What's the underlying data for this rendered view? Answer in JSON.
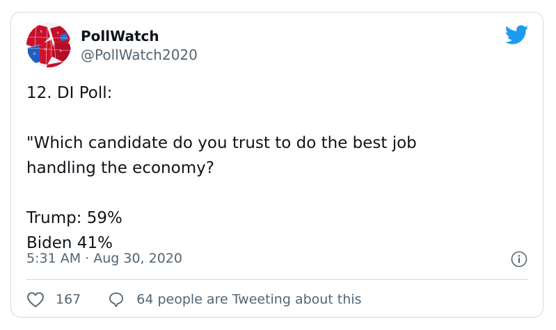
{
  "author": {
    "display_name": "PollWatch",
    "handle": "@PollWatch2020",
    "avatar_icon": "us-electoral-map-avatar"
  },
  "tweet": {
    "text": "12. DI Poll:\n\n\"Which candidate do you trust to do the best job\nhandling the economy?\n\nTrump: 59%\nBiden 41%"
  },
  "meta": {
    "timestamp": "5:31 AM · Aug 30, 2020"
  },
  "actions": {
    "likes": "167",
    "tweeting_about": "64 people are Tweeting about this"
  },
  "colors": {
    "accent": "#1d9bf0",
    "secondary_text": "#536471",
    "border": "#cfd9de",
    "map_red": "#c8102e",
    "map_blue": "#1f5fbf"
  },
  "icons": {
    "brand": "twitter-bird-icon",
    "info": "info-icon",
    "like": "heart-icon",
    "reply": "speech-bubble-icon"
  }
}
